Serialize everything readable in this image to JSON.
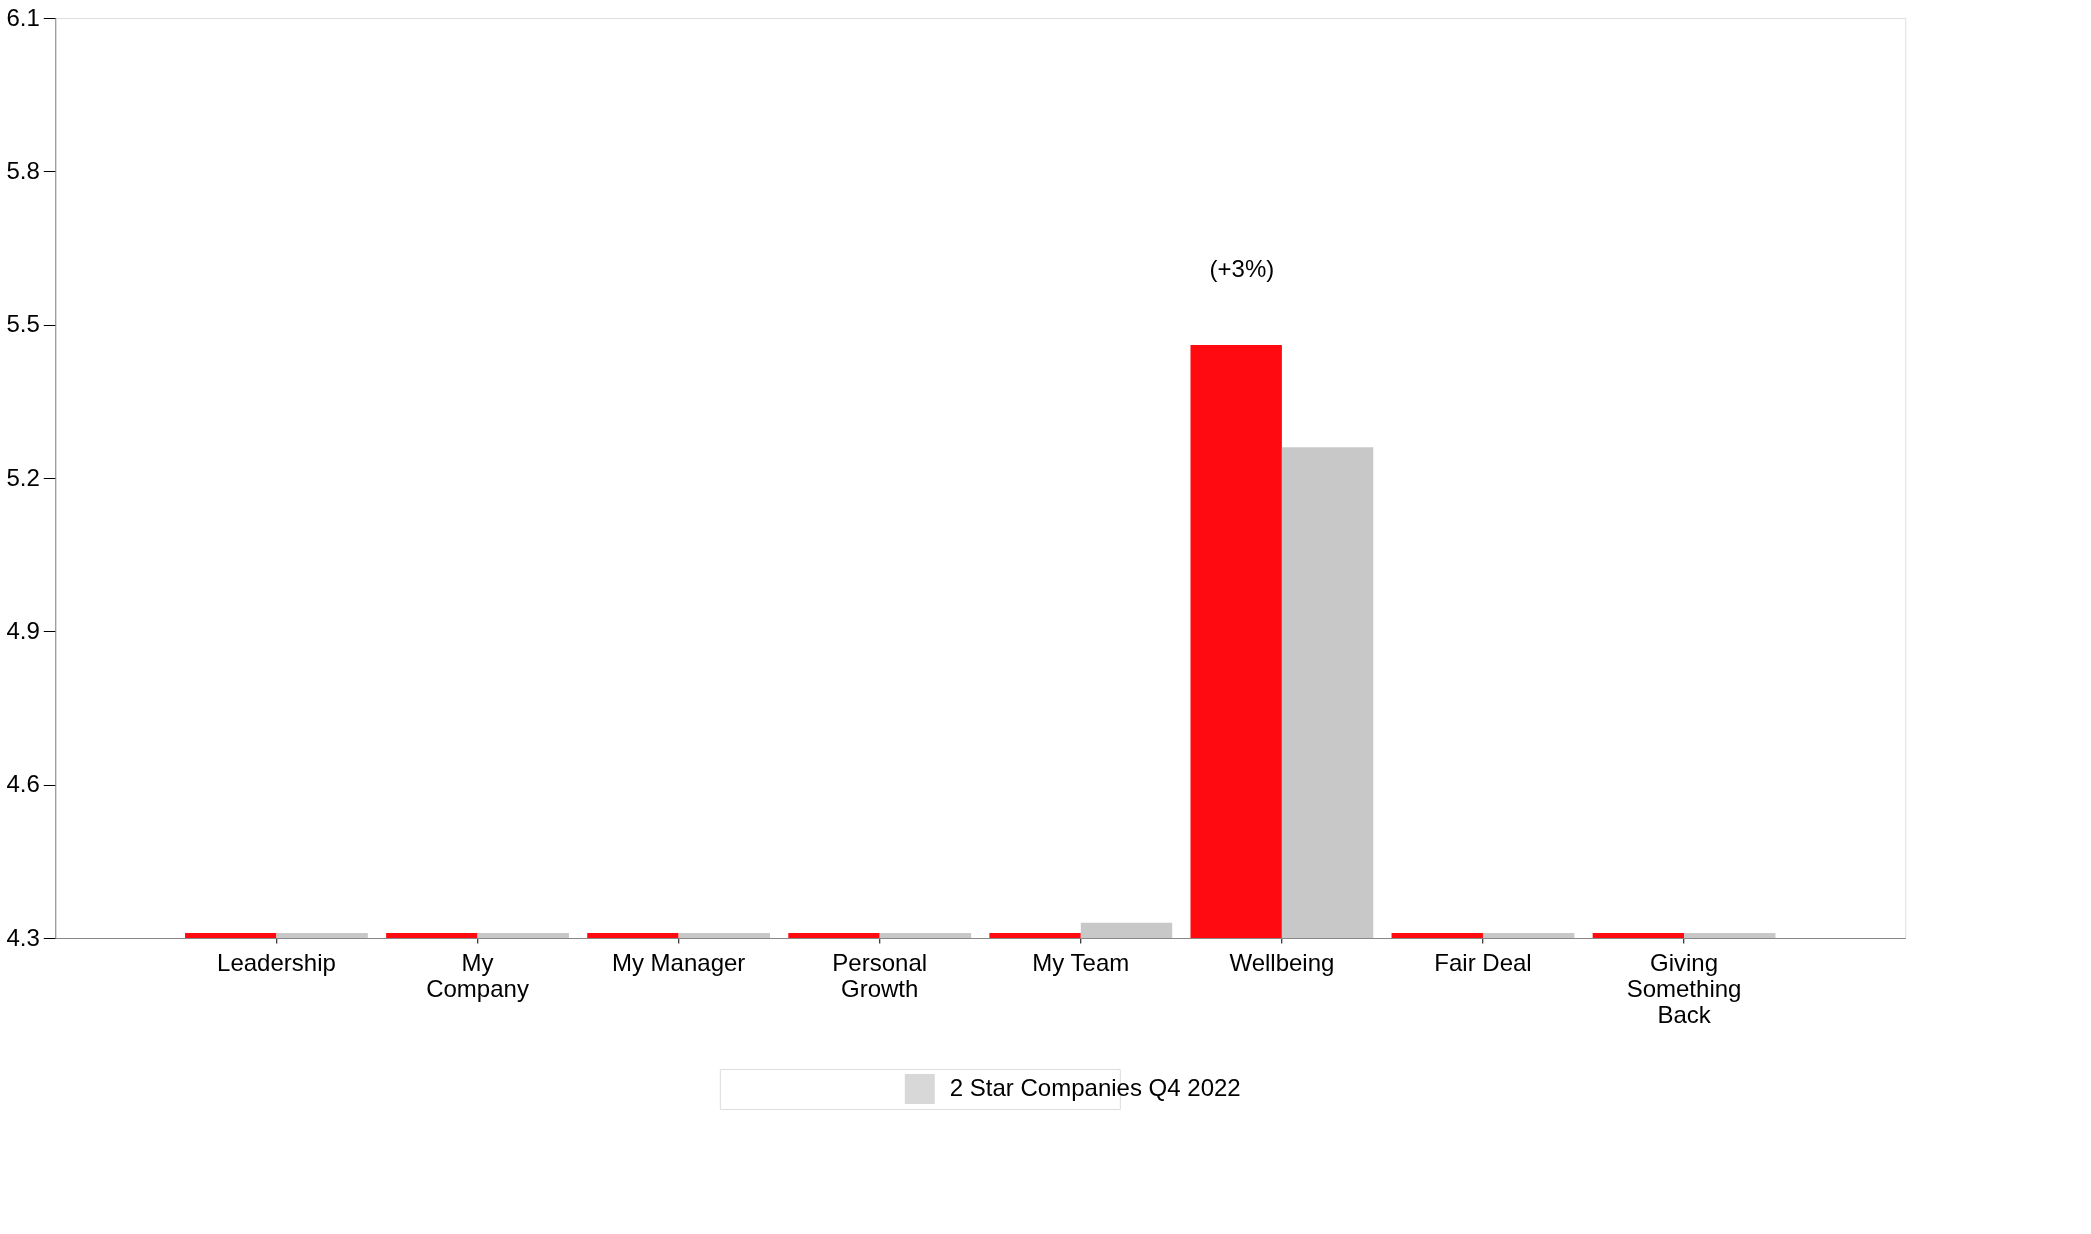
{
  "chart_data": {
    "type": "bar",
    "categories": [
      "Leadership",
      "My\nCompany",
      "My Manager",
      "Personal\nGrowth",
      "My Team",
      "Wellbeing",
      "Fair Deal",
      "Giving\nSomething\nBack"
    ],
    "series": [
      {
        "color": "#ff0a10",
        "values": [
          4.31,
          4.31,
          4.31,
          4.31,
          4.31,
          5.46,
          4.31,
          4.31
        ]
      },
      {
        "name": "2 Star Companies Q4 2022",
        "color": "#c8c8c8",
        "values": [
          4.31,
          4.31,
          4.31,
          4.31,
          4.33,
          5.26,
          4.31,
          4.31
        ]
      }
    ],
    "ylim": [
      4.3,
      6.1
    ],
    "yticks": [
      4.3,
      4.6,
      4.9,
      5.2,
      5.5,
      5.8,
      6.1
    ],
    "grid": false,
    "legend": "bottom",
    "annotations": [
      {
        "text": "(+3%)",
        "x": "Wellbeing",
        "y": 5.46
      }
    ]
  }
}
